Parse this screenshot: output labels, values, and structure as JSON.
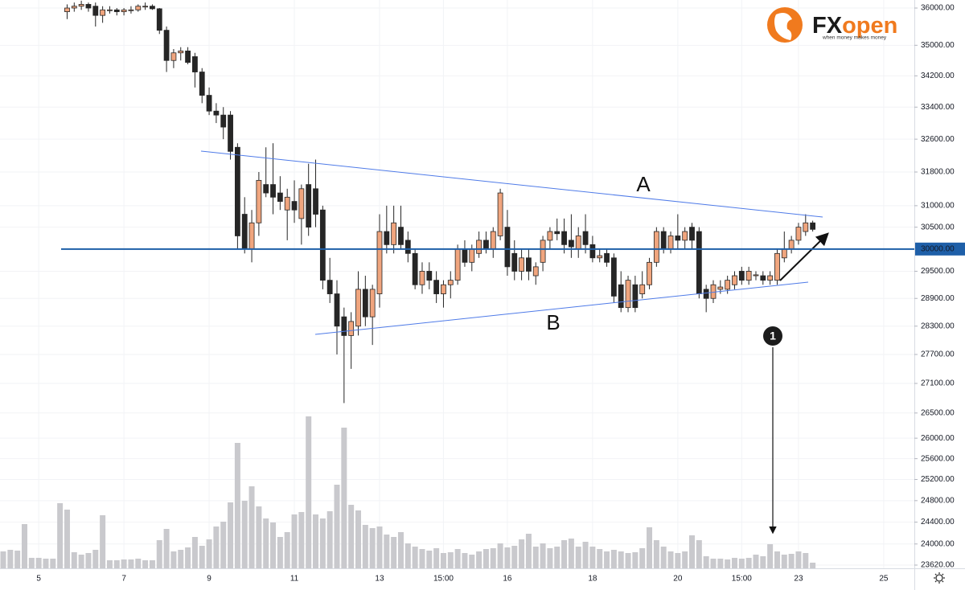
{
  "chart_data": {
    "type": "candlestick",
    "log_scale": true,
    "grid": true,
    "up_color": "#f0a57e",
    "down_color": "#262626",
    "volume_color": "#c9c9cd",
    "ylim": [
      23620,
      36000
    ],
    "yticks": [
      {
        "value": 36000,
        "label": "36000.00"
      },
      {
        "value": 35000,
        "label": "35000.00"
      },
      {
        "value": 34200,
        "label": "34200.00"
      },
      {
        "value": 33400,
        "label": "33400.00"
      },
      {
        "value": 32600,
        "label": "32600.00"
      },
      {
        "value": 31800,
        "label": "31800.00"
      },
      {
        "value": 31000,
        "label": "31000.00"
      },
      {
        "value": 30500,
        "label": "30500.00"
      },
      {
        "value": 29500,
        "label": "29500.00"
      },
      {
        "value": 28900,
        "label": "28900.00"
      },
      {
        "value": 28300,
        "label": "28300.00"
      },
      {
        "value": 27700,
        "label": "27700.00"
      },
      {
        "value": 27100,
        "label": "27100.00"
      },
      {
        "value": 26500,
        "label": "26500.00"
      },
      {
        "value": 26000,
        "label": "26000.00"
      },
      {
        "value": 25600,
        "label": "25600.00"
      },
      {
        "value": 25200,
        "label": "25200.00"
      },
      {
        "value": 24800,
        "label": "24800.00"
      },
      {
        "value": 24400,
        "label": "24400.00"
      },
      {
        "value": 24000,
        "label": "24000.00"
      },
      {
        "value": 23620,
        "label": "23620.00"
      }
    ],
    "hline": {
      "value": 30000,
      "label": "30000.00",
      "color": "#1e5fa8"
    },
    "categories": [
      null,
      null,
      null,
      null,
      null,
      "5",
      null,
      null,
      null,
      null,
      null,
      null,
      null,
      null,
      null,
      null,
      null,
      "7",
      null,
      null,
      null,
      null,
      null,
      null,
      null,
      null,
      null,
      null,
      null,
      "9",
      null,
      null,
      null,
      null,
      null,
      null,
      null,
      null,
      null,
      null,
      null,
      "11",
      null,
      null,
      null,
      null,
      null,
      null,
      null,
      null,
      null,
      null,
      null,
      "13",
      null,
      null,
      null,
      null,
      null,
      null,
      null,
      null,
      "15:00",
      null,
      null,
      null,
      null,
      null,
      null,
      null,
      null,
      "16",
      null,
      null,
      null,
      null,
      null,
      null,
      null,
      null,
      null,
      null,
      null,
      "18",
      null,
      null,
      null,
      null,
      null,
      null,
      null,
      null,
      null,
      null,
      null,
      "20",
      null,
      null,
      null,
      null,
      null,
      null,
      null,
      null,
      "15:00",
      null,
      null,
      null,
      null,
      null,
      null,
      null,
      "23",
      null,
      null,
      null,
      null,
      null,
      null,
      null,
      null,
      null,
      null,
      null,
      "25"
    ],
    "open": [
      null,
      null,
      null,
      null,
      null,
      null,
      null,
      null,
      null,
      35900,
      36000,
      36050,
      36100,
      36050,
      35800,
      35950,
      35950,
      35900,
      35950,
      35950,
      36050,
      36050,
      35980,
      35400,
      34600,
      34800,
      34850,
      34700,
      34300,
      33700,
      33300,
      33200,
      33200,
      32400,
      30800,
      30000,
      30600,
      31500,
      31500,
      31300,
      30900,
      31100,
      30700,
      31500,
      31400,
      30900,
      29300,
      29000,
      28500,
      28100,
      28300,
      29100,
      28500,
      29000,
      30400,
      30100,
      30500,
      30200,
      29900,
      29200,
      29500,
      29300,
      29000,
      29200,
      29300,
      30000,
      29700,
      29900,
      30200,
      30000,
      30300,
      30500,
      29900,
      29500,
      29800,
      29400,
      29700,
      30200,
      30400,
      30400,
      30200,
      30000,
      30400,
      30100,
      29800,
      29900,
      29800,
      29200,
      28700,
      29200,
      29000,
      29200,
      29700,
      30400,
      30000,
      30300,
      30200,
      30500,
      30400,
      29100,
      28900,
      29100,
      29100,
      29200,
      29500,
      29300,
      29400,
      29400,
      29300,
      29300,
      29800,
      30000,
      30200,
      30400,
      30600,
      null,
      null,
      null,
      null,
      null,
      null,
      null,
      null,
      null,
      null
    ],
    "high": [
      null,
      null,
      null,
      null,
      null,
      null,
      null,
      null,
      null,
      36100,
      36150,
      36200,
      36150,
      36150,
      36050,
      36050,
      36000,
      36000,
      36050,
      36100,
      36150,
      36100,
      36000,
      35500,
      34900,
      34950,
      34950,
      34800,
      34400,
      33900,
      33500,
      33400,
      33300,
      32500,
      31200,
      30900,
      31800,
      32400,
      32500,
      31700,
      31400,
      31600,
      31500,
      32000,
      32100,
      31000,
      29800,
      29300,
      28700,
      28600,
      29500,
      29400,
      29200,
      30800,
      31000,
      31000,
      31000,
      30400,
      30000,
      29700,
      29700,
      29500,
      29300,
      29500,
      30100,
      30200,
      30100,
      30400,
      30400,
      30500,
      31400,
      30900,
      30200,
      30000,
      30000,
      29700,
      30300,
      30500,
      30700,
      30700,
      30800,
      30500,
      30800,
      30300,
      30000,
      30000,
      29900,
      29500,
      29400,
      29400,
      29500,
      29800,
      30500,
      30500,
      30400,
      30800,
      30500,
      30600,
      30500,
      29200,
      29300,
      29300,
      29400,
      29500,
      29600,
      29600,
      29500,
      29500,
      29500,
      30000,
      30400,
      30300,
      30600,
      30800,
      30650,
      null,
      null,
      null,
      null,
      null,
      null,
      null,
      null,
      null,
      null
    ],
    "low": [
      null,
      null,
      null,
      null,
      null,
      null,
      null,
      null,
      null,
      35700,
      35900,
      35950,
      35900,
      35500,
      35600,
      35850,
      35800,
      35800,
      35850,
      35900,
      35950,
      35950,
      35300,
      34300,
      34400,
      34600,
      34500,
      33900,
      33500,
      33200,
      33000,
      32600,
      32100,
      30000,
      29900,
      29700,
      30300,
      31200,
      30800,
      30900,
      30200,
      30600,
      30100,
      30300,
      30500,
      29100,
      28800,
      27700,
      26700,
      27400,
      28100,
      28300,
      27900,
      28700,
      29900,
      29900,
      30000,
      29700,
      29100,
      29000,
      29100,
      28800,
      28700,
      28900,
      29200,
      29600,
      29500,
      29800,
      29900,
      29800,
      30200,
      29400,
      29300,
      29300,
      29300,
      29200,
      29500,
      30000,
      30200,
      29900,
      29800,
      29800,
      29900,
      29700,
      29700,
      29600,
      28800,
      28600,
      28600,
      28600,
      28900,
      29100,
      29600,
      29900,
      29900,
      30000,
      30000,
      30000,
      28900,
      28600,
      28800,
      29000,
      29000,
      29100,
      29200,
      29200,
      29300,
      29200,
      29200,
      29200,
      29700,
      29900,
      30100,
      30300,
      30400,
      null,
      null,
      null,
      null,
      null,
      null,
      null,
      null,
      null,
      null
    ],
    "close": [
      null,
      null,
      null,
      null,
      null,
      null,
      null,
      null,
      null,
      36000,
      36050,
      36100,
      36000,
      35800,
      35950,
      35950,
      35900,
      35950,
      35950,
      36050,
      36050,
      35980,
      35400,
      34600,
      34800,
      34850,
      34550,
      34300,
      33700,
      33300,
      33200,
      32900,
      32300,
      30300,
      30000,
      30600,
      31600,
      31300,
      31200,
      31100,
      31200,
      30900,
      31400,
      30500,
      30800,
      29300,
      29000,
      28300,
      28100,
      28400,
      29100,
      28500,
      29100,
      30400,
      30100,
      30600,
      30100,
      29900,
      29200,
      29500,
      29300,
      29000,
      29200,
      29300,
      30000,
      29700,
      30000,
      30200,
      30000,
      30400,
      31300,
      29600,
      29500,
      29800,
      29500,
      29600,
      30200,
      30400,
      30350,
      30100,
      30050,
      30300,
      30100,
      29800,
      29850,
      29700,
      28950,
      28700,
      29300,
      28700,
      29200,
      29700,
      30400,
      30000,
      30300,
      30200,
      30400,
      30200,
      29000,
      28900,
      29200,
      29150,
      29300,
      29400,
      29300,
      29500,
      29420,
      29300,
      29400,
      29900,
      30000,
      30200,
      30500,
      30600,
      30450,
      null,
      null,
      null,
      null,
      null,
      null,
      null,
      null,
      null,
      null
    ],
    "volume": [
      21,
      23,
      22,
      55,
      13,
      13,
      12,
      12,
      81,
      73,
      20,
      17,
      19,
      23,
      66,
      10,
      10,
      11,
      11,
      12,
      10,
      10,
      35,
      49,
      21,
      23,
      26,
      39,
      28,
      36,
      52,
      58,
      82,
      156,
      84,
      102,
      77,
      62,
      57,
      39,
      45,
      67,
      70,
      189,
      67,
      62,
      71,
      104,
      175,
      79,
      72,
      54,
      50,
      52,
      42,
      39,
      45,
      31,
      27,
      24,
      22,
      25,
      19,
      20,
      24,
      19,
      17,
      21,
      24,
      25,
      31,
      26,
      28,
      36,
      43,
      27,
      31,
      25,
      27,
      35,
      37,
      27,
      33,
      27,
      24,
      21,
      23,
      21,
      19,
      20,
      25,
      51,
      35,
      27,
      21,
      19,
      21,
      41,
      35,
      15,
      12,
      12,
      11,
      13,
      12,
      13,
      17,
      15,
      30,
      21,
      17,
      18,
      21,
      19,
      7,
      null,
      null,
      null,
      null,
      null,
      null,
      null,
      null,
      null,
      null
    ],
    "annotations": {
      "line_a": "A",
      "line_b": "B",
      "marker": "1"
    },
    "logo": {
      "left": "FX",
      "right": "open",
      "tagline": "when money makes money"
    }
  }
}
